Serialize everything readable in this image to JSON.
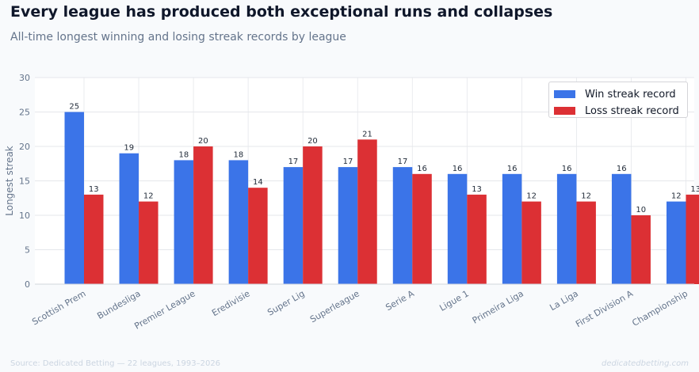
{
  "header": {
    "title": "Every league has produced both exceptional runs and collapses",
    "subtitle": "All-time longest winning and losing streak records by league"
  },
  "footer": {
    "source": "Source: Dedicated Betting — 22 leagues, 1993–2026",
    "brand": "dedicatedbetting.com"
  },
  "colors": {
    "win": "#3b74e8",
    "loss": "#dc3034",
    "grid": "#e5e7eb",
    "axis_text": "#64748b",
    "label_text": "#1f2937"
  },
  "chart_data": {
    "type": "bar",
    "categories": [
      "Scottish Prem",
      "Bundesliga",
      "Premier League",
      "Eredivisie",
      "Super Lig",
      "Superleague",
      "Serie A",
      "Ligue 1",
      "Primeira Liga",
      "La Liga",
      "First Division A",
      "Championship"
    ],
    "series": [
      {
        "name": "Win streak record",
        "values": [
          25,
          19,
          18,
          18,
          17,
          17,
          17,
          16,
          16,
          16,
          16,
          12
        ]
      },
      {
        "name": "Loss streak record",
        "values": [
          13,
          12,
          20,
          14,
          20,
          21,
          16,
          13,
          12,
          12,
          10,
          13
        ]
      }
    ],
    "ylabel": "Longest streak",
    "xlabel": "",
    "ylim": [
      0,
      30
    ],
    "yticks": [
      0,
      5,
      10,
      15,
      20,
      25,
      30
    ],
    "grid": true,
    "legend_position": "top-right"
  }
}
